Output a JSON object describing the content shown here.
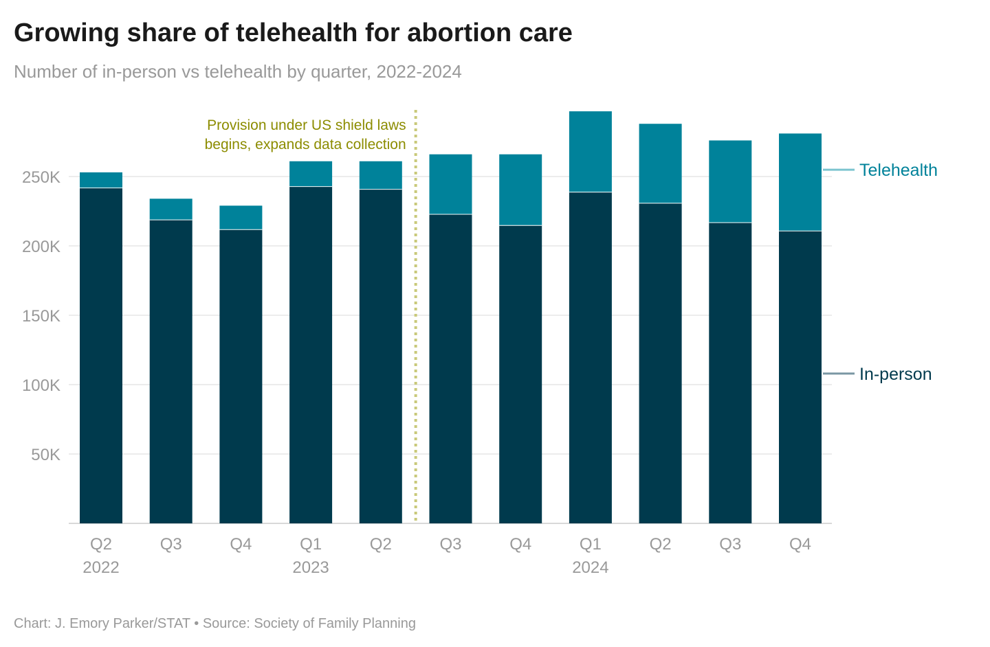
{
  "title": "Growing share of telehealth for abortion care",
  "subtitle": "Number of in-person vs telehealth by quarter, 2022-2024",
  "source": "Chart: J. Emory Parker/STAT • Source: Society of Family Planning",
  "chart_data": {
    "type": "bar",
    "stacked": true,
    "categories": [
      "Q2 2022",
      "Q3 2022",
      "Q4 2022",
      "Q1 2023",
      "Q2 2023",
      "Q3 2023",
      "Q4 2023",
      "Q1 2024",
      "Q2 2024",
      "Q3 2024",
      "Q4 2024"
    ],
    "tick_labels": [
      {
        "quarter": "Q2",
        "year": "2022"
      },
      {
        "quarter": "Q3",
        "year": ""
      },
      {
        "quarter": "Q4",
        "year": ""
      },
      {
        "quarter": "Q1",
        "year": "2023"
      },
      {
        "quarter": "Q2",
        "year": ""
      },
      {
        "quarter": "Q3",
        "year": ""
      },
      {
        "quarter": "Q4",
        "year": ""
      },
      {
        "quarter": "Q1",
        "year": "2024"
      },
      {
        "quarter": "Q2",
        "year": ""
      },
      {
        "quarter": "Q3",
        "year": ""
      },
      {
        "quarter": "Q4",
        "year": ""
      }
    ],
    "series": [
      {
        "name": "In-person",
        "color": "#003a4d",
        "values": [
          242000,
          219000,
          212000,
          243000,
          241000,
          223000,
          215000,
          239000,
          231000,
          217000,
          211000
        ]
      },
      {
        "name": "Telehealth",
        "color": "#00829a",
        "values": [
          11000,
          15000,
          17000,
          18000,
          20000,
          43000,
          51000,
          58000,
          57000,
          59000,
          70000
        ]
      }
    ],
    "ylim": [
      0,
      300000
    ],
    "yticks": [
      {
        "value": 50000,
        "label": "50K"
      },
      {
        "value": 100000,
        "label": "100K"
      },
      {
        "value": 150000,
        "label": "150K"
      },
      {
        "value": 200000,
        "label": "200K"
      },
      {
        "value": 250000,
        "label": "250K"
      }
    ],
    "grid": true,
    "legend_placement": "right, direct labels",
    "annotation": {
      "after_category": "Q2 2023",
      "lines": [
        "Provision under US shield laws",
        "begins, expands data collection"
      ],
      "color": "#8c8c00",
      "line_color": "#c9c97a"
    }
  }
}
